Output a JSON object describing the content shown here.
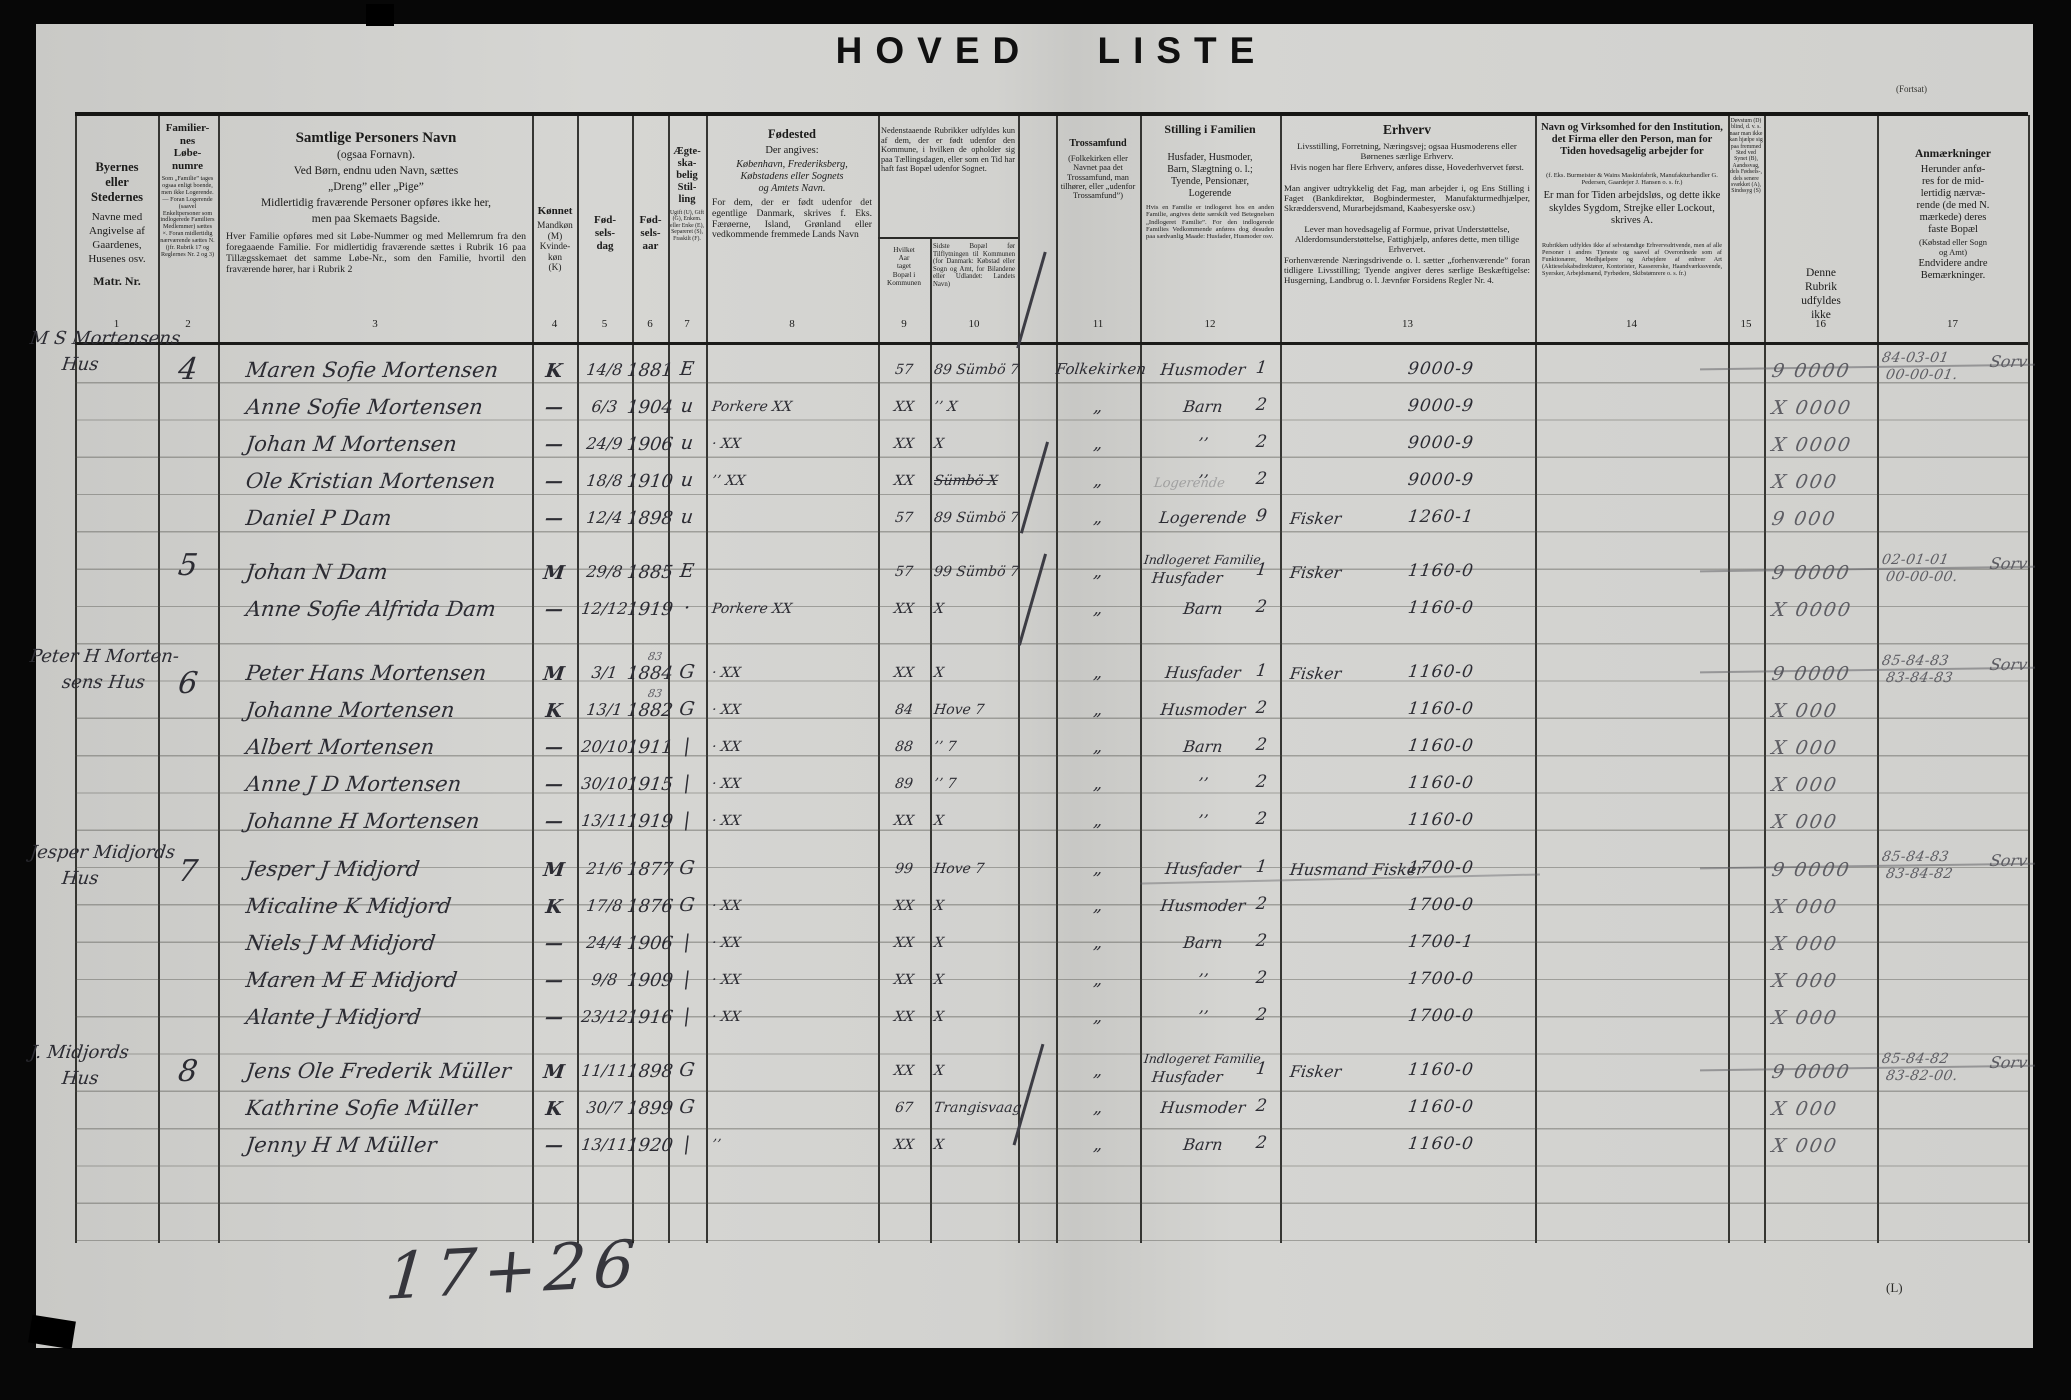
{
  "title": "HOVED LISTE",
  "corner_note": "(Fortsat)",
  "form_mark": "(L)",
  "tally_note": "17+26",
  "header": {
    "c1top": "Byernes\neller\nStedernes",
    "c1mid": "Navne med\nAngivelse af\nGaardenes,\nHusenes osv.",
    "c1bot": "Matr. Nr.",
    "c2title": "Familier-\nnes\nLøbe-\nnumre",
    "c2note": "Som „Familie” tages ogsaa enligt boende, men ikke Logerende. — Foran Logerende (saavel Enkeltpersoner som indlogerede Familiers Medlemmer) sættes ×. Foran midlertidig nærværende sættes N. (jfr. Rubrik 17 og Reglernes Nr. 2 og 3)",
    "c3title": "Samtlige Personers Navn",
    "c3sub": "(ogsaa Fornavn).",
    "c3l1": "Ved Børn, endnu uden Navn, sættes",
    "c3l2": "„Dreng” eller „Pige”",
    "c3l3": "Midlertidig fraværende Personer opføres ikke her,",
    "c3l4": "men paa Skemaets Bagside.",
    "c3para": "Hver Familie opføres med sit Løbe-Nummer og med Mellemrum fra den foregaaende Familie. For midlertidig fraværende sættes i Rubrik 16 paa Tillægsskemaet det samme Løbe-Nr., som den Familie, hvortil den fraværende hører, har i Rubrik 2",
    "c4title": "Kønnet",
    "c4rest": "Mandkøn\n(M)\nKvinde-\nkøn\n(K)",
    "c5": "Fød-\nsels-\ndag",
    "c6": "Fød-\nsels-\naar",
    "c7": "Ægte-\nska-\nbelig\nStil-\nling",
    "c7note": "Ugift (U), Gift (G), Enkem. eller Enke (E), Separeret (S), Fraskilt (F).",
    "c8title": "Fødested",
    "c8sub": "Der angives:",
    "c8ital": "København, Frederiksberg,\nKøbstadens eller Sognets\nog Amtets Navn.",
    "c8para": "For dem, der er født udenfor det egentlige Danmark, skrives f. Eks. Færøerne, Island, Grønland eller vedkommende fremmede Lands Navn",
    "g910": "Nedenstaaende Rubrikker udfyldes kun af dem, der er født udenfor den Kommune, i hvilken de opholder sig paa Tællingsdagen, eller som en Tid har haft fast Bopæl udenfor Sognet.",
    "c9": "Hvilket\nAar\ntaget\nBopæl i\nKommunen",
    "c10": "Sidste Bopæl før Tilflytningen til Kommunen (for Danmark: Købstad eller Sogn og Amt, for Bilandene eller Udlandet: Landets Navn)",
    "c11title": "Trossamfund",
    "c11para": "(Folkekirken eller Navnet paa det Trossamfund, man tilhører, eller „udenfor Trossamfund”)",
    "c12title": "Stilling i Familien",
    "c12mid": "Husfader, Husmoder,\nBarn, Slægtning o. l.;\nTyende, Pensionær,\nLogerende",
    "c12para": "Hvis en Familie er indlogeret hos en anden Familie, angives dette særskilt ved Betegnelsen „Indlogeret Familie”. For den indlogerede Families Vedkommende anføres dog desuden paa sædvanlig Maade: Husfader, Husmoder osv.",
    "c13title": "Erhverv",
    "c13p1": "Livsstilling, Forretning, Næringsvej; ogsaa Husmoderens eller Børnenes særlige Erhverv.",
    "c13p2": "Hvis nogen har flere Erhverv, anføres disse, Hovederhvervet først.",
    "c13p3": "Man angiver udtrykkelig det Fag, man arbejder i, og Ens Stilling i Faget (Bankdirektør, Bogbindermester, Manufakturmedhjælper, Skræddersvend, Murarbejdsmand, Kaabesyerske osv.)",
    "c13p4": "Lever man hovedsagelig af Formue, privat Understøttelse, Alderdomsunderstøttelse, Fattighjælp, anføres dette, men tillige Erhvervet.",
    "c13p5": "Forhenværende Næringsdrivende o. l. sætter „forhenværende” foran tidligere Livsstilling; Tyende angiver deres særlige Beskæftigelse: Husgerning, Landbrug o. l. Jævnfør Forsidens Regler Nr. 4.",
    "c14p1": "Navn og Virksomhed for den Institution, det Firma eller den Person, man for Tiden hovedsagelig arbejder for",
    "c14p2": "(f. Eks. Burmeister & Wains Maskinfabrik, Manufakturhandler G. Pedersen, Gaardejer J. Hansen o. s. fr.)",
    "c14p3": "Er man for Tiden arbejdsløs, og dette ikke skyldes Sygdom, Strejke eller Lockout, skrives A.",
    "c14p4": "Rubrikken udfyldes ikke af selvstændige Erhvervsdrivende, men af alle Personer i andres Tjeneste og saavel af Overordnede som af Funktionærer, Medhjælpere og Arbejdere af enhver Art (Aktieselskabsdirektører, Kontorister, Kassererske, Haandværkssvende, Syersker, Arbejdsmænd, Fyrbødere, Skibstømrere o. s. fr.)",
    "c15": "Døvstum (D) blind, d. v. s. naar man ikke kan hjælpe sig paa fremmed Sted ved Synet (B), Aandssvag, dels Fødsels-, dels senere svækket (A), Sindssyg (S)",
    "c16": "Denne\nRubrik\nudfyldes\nikke",
    "c17title": "Anmærkninger",
    "c17lines": "Herunder anfø-\nres for de mid-\nlertidig nærvæ-\nrende (de med N.\nmærkede) deres\nfaste Bopæl",
    "c17small": "(Købstad eller Sogn\nog Amt)",
    "c17end": "Endvidere andre\nBemærkninger.",
    "nums": [
      "1",
      "2",
      "3",
      "4",
      "5",
      "6",
      "7",
      "8",
      "9",
      "10",
      "11",
      "12",
      "13",
      "14",
      "15",
      "16",
      "17"
    ]
  },
  "families": [
    {
      "no": "4",
      "house": {
        "l1": "M S Mortensens",
        "l2": "Hus"
      },
      "members": [
        {
          "name": "Maren Sofie Mortensen",
          "sex": "K",
          "bd": "14/8",
          "by": "1881",
          "st": "E",
          "c9": "57",
          "c10": "89 Sümbö 7",
          "tros": "Folkekirken",
          "fam": "Husmoder",
          "famno": "1",
          "code": "9000-9",
          "c16": "9 0000",
          "c17": [
            "84-03-01",
            "00-00-01.",
            "Sorv"
          ]
        },
        {
          "name": "Anne Sofie Mortensen",
          "sex": "—",
          "bd": "6/3",
          "by": "1904",
          "st": "u",
          "c8": "Porkere XX",
          "c9": "XX",
          "c10": "’’ X",
          "tros": "„",
          "fam": "Barn",
          "famno": "2",
          "code": "9000-9",
          "c16": "X 0000"
        },
        {
          "name": "Johan M Mortensen",
          "sex": "—",
          "bd": "24/9",
          "by": "1906",
          "st": "u",
          "c8": "· XX",
          "c9": "XX",
          "c10": "X",
          "tros": "„",
          "fam": "’’",
          "famno": "2",
          "code": "9000-9",
          "c16": "X 0000"
        },
        {
          "name": "Ole Kristian Mortensen",
          "sex": "—",
          "bd": "18/8",
          "by": "1910",
          "st": "u",
          "c8": "’’ XX",
          "c9": "XX",
          "c10": "Sümbö X",
          "strike10": true,
          "tros": "„",
          "fam": "’’",
          "famno": "2",
          "ghost": "Logerende",
          "code": "9000-9",
          "c16": "X 000"
        },
        {
          "name": "Daniel P Dam",
          "sex": "—",
          "bd": "12/4",
          "by": "1898",
          "st": "u",
          "c9": "57",
          "c10": "89 Sümbö 7",
          "tros": "„",
          "fam": "Logerende",
          "famno": "9",
          "word": "Fisker",
          "code": "1260-1",
          "c16": "9 000"
        }
      ]
    },
    {
      "no": "5",
      "members": [
        {
          "name": "Johan N Dam",
          "sex": "M",
          "bd": "29/8",
          "by": "1885",
          "st": "E",
          "c9": "57",
          "c10": "99 Sümbö 7",
          "tros": "„",
          "fam2": "Indlogeret Familie",
          "fam": "Husfader",
          "famno": "1",
          "word": "Fisker",
          "code": "1160-0",
          "c16": "9 0000",
          "c17": [
            "02-01-01",
            "00-00-00.",
            "Sorv"
          ]
        },
        {
          "name": "Anne Sofie Alfrida Dam",
          "sex": "—",
          "bd": "12/12",
          "by": "1919",
          "st": "·",
          "c8": "Porkere XX",
          "c9": "XX",
          "c10": "X",
          "tros": "„",
          "fam": "Barn",
          "famno": "2",
          "code": "1160-0",
          "c16": "X 0000"
        }
      ]
    },
    {
      "no": "6",
      "house": {
        "l1": "Peter H Morten-",
        "l2": "sens Hus"
      },
      "members": [
        {
          "name": "Peter Hans Mortensen",
          "sex": "M",
          "bd": "3/1",
          "by": "1884",
          "yn": "83",
          "st": "G",
          "c8": "· XX",
          "c9": "XX",
          "c10": "X",
          "tros": "„",
          "fam": "Husfader",
          "famno": "1",
          "word": "Fisker",
          "code": "1160-0",
          "c16": "9 0000",
          "c17": [
            "85-84-83",
            "83-84-83",
            "Sorv"
          ]
        },
        {
          "name": "Johanne Mortensen",
          "sex": "K",
          "bd": "13/1",
          "by": "1882",
          "yn": "83",
          "st": "G",
          "c8": "· XX",
          "c9": "84",
          "c10": "Hove 7",
          "tros": "„",
          "fam": "Husmoder",
          "famno": "2",
          "code": "1160-0",
          "c16": "X 000"
        },
        {
          "name": "Albert Mortensen",
          "sex": "—",
          "bd": "20/10",
          "by": "1911",
          "st": "|",
          "c8": "· XX",
          "c9": "88",
          "c10": "’’ 7",
          "tros": "„",
          "fam": "Barn",
          "famno": "2",
          "code": "1160-0",
          "c16": "X 000"
        },
        {
          "name": "Anne J D Mortensen",
          "sex": "—",
          "bd": "30/10",
          "by": "1915",
          "st": "|",
          "c8": "· XX",
          "c9": "89",
          "c10": "’’ 7",
          "tros": "„",
          "fam": "’’",
          "famno": "2",
          "code": "1160-0",
          "c16": "X 000"
        },
        {
          "name": "Johanne H Mortensen",
          "sex": "—",
          "bd": "13/11",
          "by": "1919",
          "st": "|",
          "c8": "· XX",
          "c9": "XX",
          "c10": "X",
          "tros": "„",
          "fam": "’’",
          "famno": "2",
          "code": "1160-0",
          "c16": "X 000"
        }
      ]
    },
    {
      "no": "7",
      "house": {
        "l1": "Jesper Midjords",
        "l2": "Hus"
      },
      "members": [
        {
          "name": "Jesper J Midjord",
          "sex": "M",
          "bd": "21/6",
          "by": "1877",
          "st": "G",
          "c9": "99",
          "c10": "Hove 7",
          "tros": "„",
          "fam": "Husfader",
          "famno": "1",
          "word": "Husmand Fisker",
          "code": "1700-0",
          "c16": "9 0000",
          "c17": [
            "85-84-83",
            "83-84-82",
            "Sorv"
          ]
        },
        {
          "name": "Micaline K Midjord",
          "sex": "K",
          "bd": "17/8",
          "by": "1876",
          "st": "G",
          "c8": "· XX",
          "c9": "XX",
          "c10": "X",
          "tros": "„",
          "fam": "Husmoder",
          "famno": "2",
          "code": "1700-0",
          "c16": "X 000"
        },
        {
          "name": "Niels J M Midjord",
          "sex": "—",
          "bd": "24/4",
          "by": "1906",
          "st": "|",
          "c8": "· XX",
          "c9": "XX",
          "c10": "X",
          "tros": "„",
          "fam": "Barn",
          "famno": "2",
          "code": "1700-1",
          "c16": "X 000"
        },
        {
          "name": "Maren M E Midjord",
          "sex": "—",
          "bd": "9/8",
          "by": "1909",
          "st": "|",
          "c8": "· XX",
          "c9": "XX",
          "c10": "X",
          "tros": "„",
          "fam": "’’",
          "famno": "2",
          "code": "1700-0",
          "c16": "X 000"
        },
        {
          "name": "Alante J Midjord",
          "sex": "—",
          "bd": "23/12",
          "by": "1916",
          "st": "|",
          "c8": "· XX",
          "c9": "XX",
          "c10": "X",
          "tros": "„",
          "fam": "’’",
          "famno": "2",
          "code": "1700-0",
          "c16": "X 000"
        }
      ]
    },
    {
      "no": "8",
      "house": {
        "l1": "J. Midjords",
        "l2": "Hus"
      },
      "members": [
        {
          "name": "Jens Ole Frederik Müller",
          "sex": "M",
          "bd": "11/11",
          "by": "1898",
          "st": "G",
          "c9": "XX",
          "c10": "X",
          "tros": "„",
          "fam2": "Indlogeret Familie",
          "fam": "Husfader",
          "famno": "1",
          "word": "Fisker",
          "code": "1160-0",
          "c16": "9 0000",
          "c17": [
            "85-84-82",
            "83-82-00.",
            "Sorv"
          ]
        },
        {
          "name": "Kathrine Sofie Müller",
          "sex": "K",
          "bd": "30/7",
          "by": "1899",
          "st": "G",
          "c9": "67",
          "c10": "Trangisvaag",
          "tros": "„",
          "fam": "Husmoder",
          "famno": "2",
          "code": "1160-0",
          "c16": "X 000"
        },
        {
          "name": "Jenny H M Müller",
          "sex": "—",
          "bd": "13/11",
          "by": "1920",
          "st": "|",
          "c8": "’’",
          "c9": "XX",
          "c10": "X",
          "tros": "„",
          "fam": "Barn",
          "famno": "2",
          "code": "1160-0",
          "c16": "X 000"
        }
      ]
    }
  ]
}
